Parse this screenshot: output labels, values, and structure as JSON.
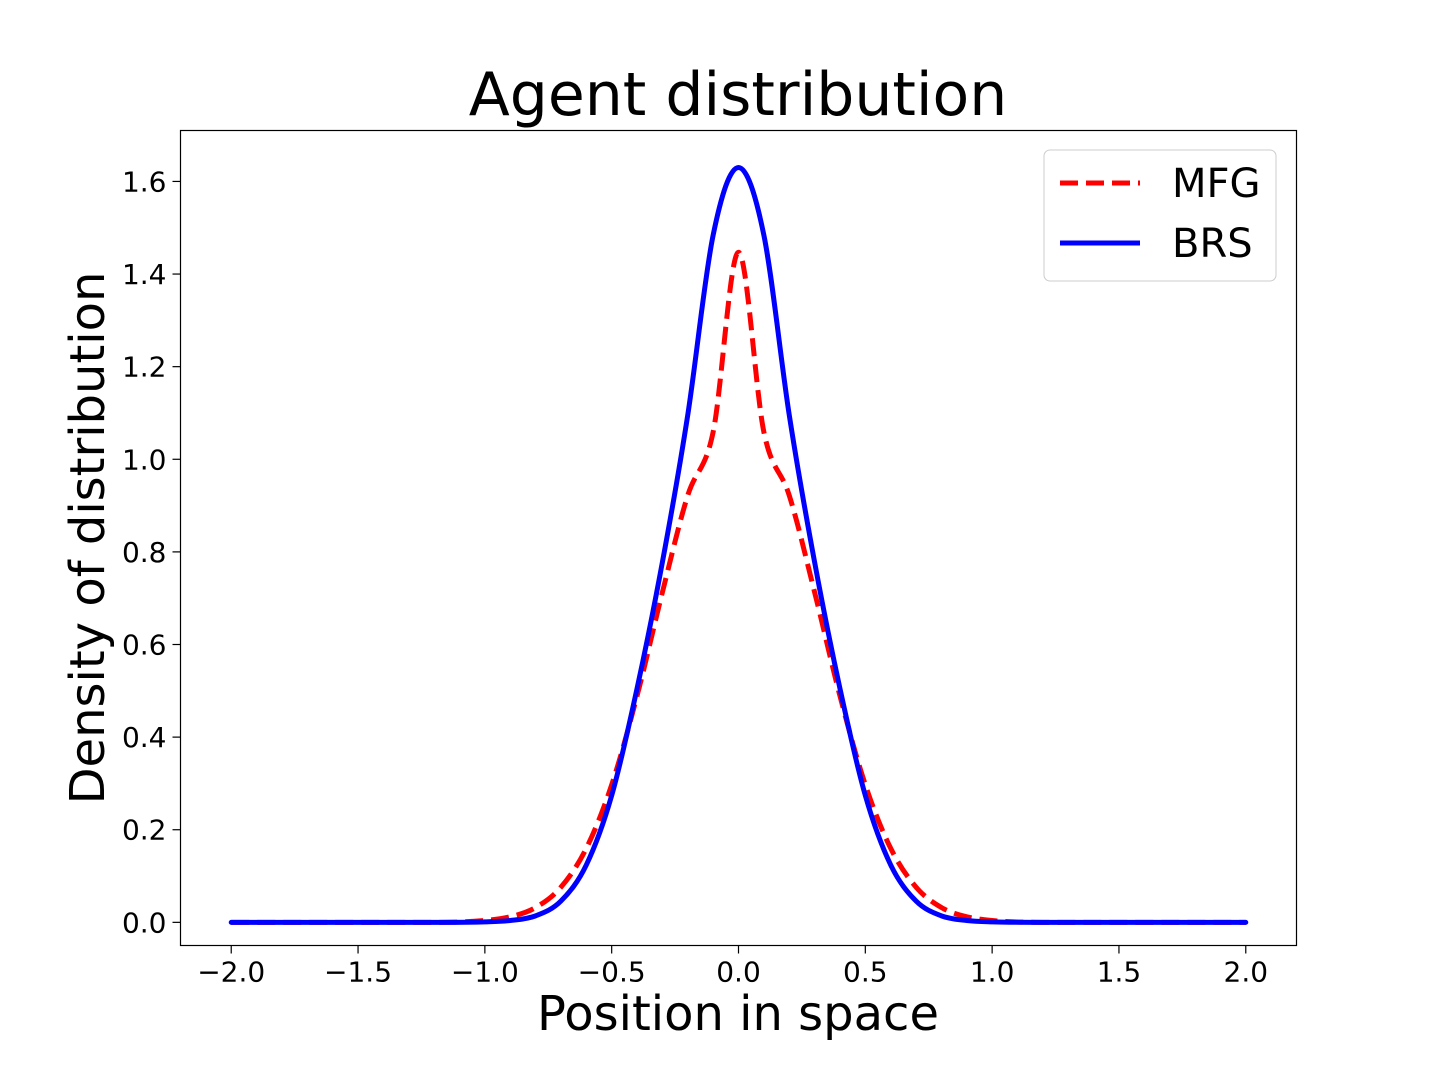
{
  "chart_data": {
    "type": "line",
    "title": "Agent distribution",
    "xlabel": "Position in space",
    "ylabel": "Density of distribution",
    "xlim": [
      -2.2,
      2.2
    ],
    "ylim": [
      -0.05,
      1.71
    ],
    "xticks": [
      -2.0,
      -1.5,
      -1.0,
      -0.5,
      0.0,
      0.5,
      1.0,
      1.5,
      2.0
    ],
    "xtick_labels": [
      "−2.0",
      "−1.5",
      "−1.0",
      "−0.5",
      "0.0",
      "0.5",
      "1.0",
      "1.5",
      "2.0"
    ],
    "yticks": [
      0.0,
      0.2,
      0.4,
      0.6,
      0.8,
      1.0,
      1.2,
      1.4,
      1.6
    ],
    "ytick_labels": [
      "0.0",
      "0.2",
      "0.4",
      "0.6",
      "0.8",
      "1.0",
      "1.2",
      "1.4",
      "1.6"
    ],
    "grid": false,
    "legend_position": "top-right",
    "x": [
      -2.0,
      -1.5,
      -1.2,
      -1.0,
      -0.9,
      -0.8,
      -0.7,
      -0.6,
      -0.5,
      -0.4,
      -0.3,
      -0.2,
      -0.1,
      0.0,
      0.1,
      0.2,
      0.3,
      0.4,
      0.5,
      0.6,
      0.7,
      0.8,
      0.9,
      1.0,
      1.2,
      1.5,
      2.0
    ],
    "series": [
      {
        "name": "MFG",
        "color": "#ff0000",
        "style": "dashed",
        "values": [
          0.0,
          0.0,
          0.0,
          0.004,
          0.012,
          0.032,
          0.076,
          0.16,
          0.297,
          0.489,
          0.713,
          0.922,
          1.059,
          1.447,
          1.059,
          0.922,
          0.713,
          0.489,
          0.297,
          0.16,
          0.076,
          0.032,
          0.012,
          0.004,
          0.0,
          0.0,
          0.0
        ]
      },
      {
        "name": "BRS",
        "color": "#0000ff",
        "style": "solid",
        "values": [
          0.0,
          0.0,
          0.0,
          0.001,
          0.004,
          0.014,
          0.046,
          0.124,
          0.274,
          0.505,
          0.778,
          1.096,
          1.484,
          1.63,
          1.484,
          1.096,
          0.778,
          0.505,
          0.274,
          0.124,
          0.046,
          0.014,
          0.004,
          0.001,
          0.0,
          0.0,
          0.0
        ]
      }
    ]
  }
}
